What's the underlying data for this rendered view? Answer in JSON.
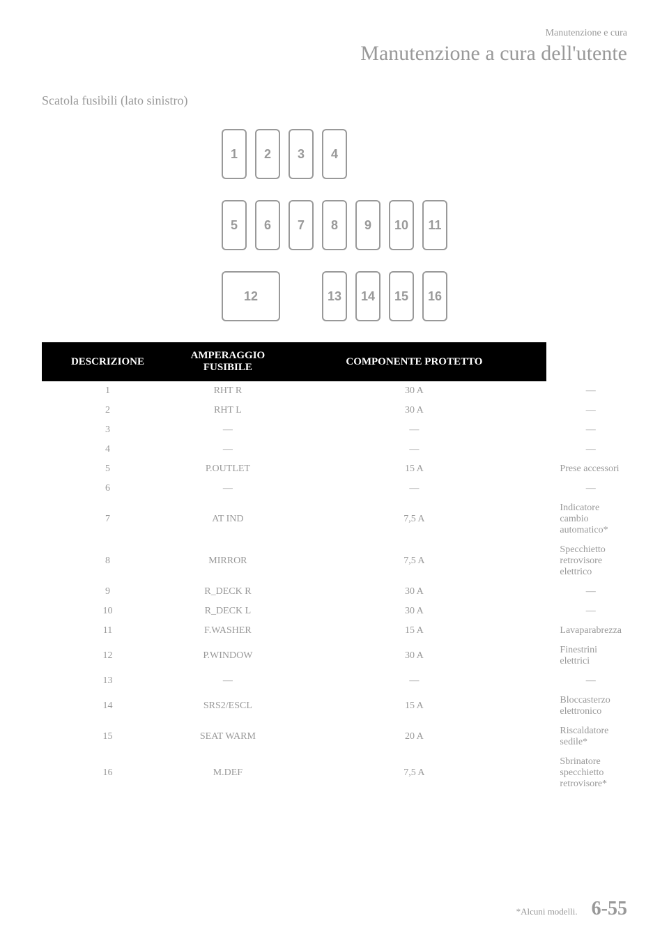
{
  "header": {
    "small": "Manutenzione e cura",
    "large": "Manutenzione a cura dell'utente"
  },
  "subtitle": "Scatola fusibili (lato sinistro)",
  "diagram": {
    "row1": [
      "1",
      "2",
      "3",
      "4"
    ],
    "row2": [
      "5",
      "6",
      "7",
      "8",
      "9",
      "10",
      "11"
    ],
    "row3_large": "12",
    "row3_small": [
      "13",
      "14",
      "15",
      "16"
    ]
  },
  "table": {
    "headers": [
      "DESCRIZIONE",
      "AMPERAGGIO FUSIBILE",
      "COMPONENTE PROTETTO"
    ],
    "rows": [
      {
        "n": "1",
        "desc": "RHT R",
        "amp": "30 A",
        "comp": "—",
        "center": true
      },
      {
        "n": "2",
        "desc": "RHT L",
        "amp": "30 A",
        "comp": "—",
        "center": true
      },
      {
        "n": "3",
        "desc": "—",
        "amp": "—",
        "comp": "—",
        "center": true
      },
      {
        "n": "4",
        "desc": "—",
        "amp": "—",
        "comp": "—",
        "center": true
      },
      {
        "n": "5",
        "desc": "P.OUTLET",
        "amp": "15 A",
        "comp": "Prese accessori",
        "center": false
      },
      {
        "n": "6",
        "desc": "—",
        "amp": "—",
        "comp": "—",
        "center": true
      },
      {
        "n": "7",
        "desc": "AT IND",
        "amp": "7,5 A",
        "comp": "Indicatore cambio automatico*",
        "center": false
      },
      {
        "n": "8",
        "desc": "MIRROR",
        "amp": "7,5 A",
        "comp": "Specchietto retrovisore elettrico",
        "center": false
      },
      {
        "n": "9",
        "desc": "R_DECK R",
        "amp": "30 A",
        "comp": "—",
        "center": true
      },
      {
        "n": "10",
        "desc": "R_DECK L",
        "amp": "30 A",
        "comp": "—",
        "center": true
      },
      {
        "n": "11",
        "desc": "F.WASHER",
        "amp": "15 A",
        "comp": "Lavaparabrezza",
        "center": false
      },
      {
        "n": "12",
        "desc": "P.WINDOW",
        "amp": "30 A",
        "comp": "Finestrini elettrici",
        "center": false
      },
      {
        "n": "13",
        "desc": "—",
        "amp": "—",
        "comp": "—",
        "center": true
      },
      {
        "n": "14",
        "desc": "SRS2/ESCL",
        "amp": "15 A",
        "comp": "Bloccasterzo elettronico",
        "center": false
      },
      {
        "n": "15",
        "desc": "SEAT WARM",
        "amp": "20 A",
        "comp": "Riscaldatore sedile*",
        "center": false
      },
      {
        "n": "16",
        "desc": "M.DEF",
        "amp": "7,5 A",
        "comp": "Sbrinatore specchietto retrovisore*",
        "center": false
      }
    ]
  },
  "footer": {
    "note": "*Alcuni modelli.",
    "page": "6-55"
  }
}
